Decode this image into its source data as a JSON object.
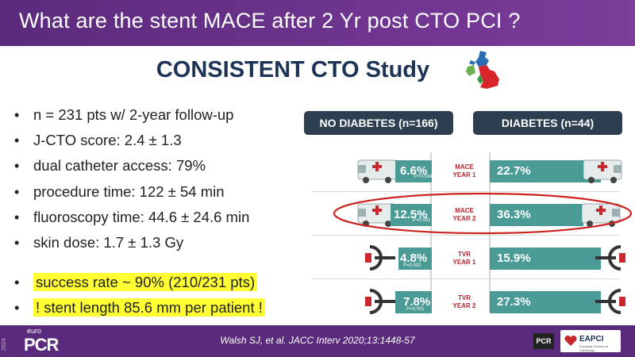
{
  "header": {
    "title": "What are the stent MACE after 2 Yr post CTO PCI ?"
  },
  "study": {
    "title": "CONSISTENT CTO Study"
  },
  "facts": [
    "n = 231 pts w/ 2-year follow-up",
    "J-CTO score: 2.4 ± 1.3",
    "dual catheter access: 79%",
    "procedure time: 122 ± 54 min",
    "fluoroscopy time: 44.6 ± 24.6 min",
    "skin dose: 1.7 ± 1.3 Gy"
  ],
  "highlights": [
    "success rate ~ 90% (210/231 pts)",
    "! stent length 85.6 mm per patient !"
  ],
  "bullet": "•",
  "table": {
    "left_header": "NO DIABETES (n=166)",
    "right_header": "DIABETES (n=44)",
    "rows": [
      {
        "label1": "MACE",
        "label2": "YEAR 1",
        "left": "6.6%",
        "p": "P=0.034",
        "right": "22.7%",
        "icon": "ambulance-icon"
      },
      {
        "label1": "MACE",
        "label2": "YEAR 2",
        "left": "12.5%",
        "p": "P=0.001",
        "right": "36.3%",
        "icon": "ambulance-icon"
      },
      {
        "label1": "TVR",
        "label2": "YEAR 1",
        "left": "4.8%",
        "p": "P=0.032",
        "right": "15.9%",
        "icon": "cath-lab-icon"
      },
      {
        "label1": "TVR",
        "label2": "YEAR 2",
        "left": "7.8%",
        "p": "P=0.001",
        "right": "27.3%",
        "icon": "cath-lab-icon"
      }
    ]
  },
  "footer": {
    "citation": "Walsh SJ, et al. JACC Interv 2020;13:1448-57",
    "year": "2024",
    "euro": "euro",
    "pcr": "PCR",
    "pcr_badge": "PCR",
    "eapci": "EAPCI",
    "eapci_sub": "European Society of Cardiology"
  },
  "colors": {
    "header": "#5b2a7c",
    "bar": "#4a9a96",
    "pill": "#2d3e50",
    "label": "#b8232a",
    "highlight": "#ffff33",
    "circle": "#cc2222"
  }
}
